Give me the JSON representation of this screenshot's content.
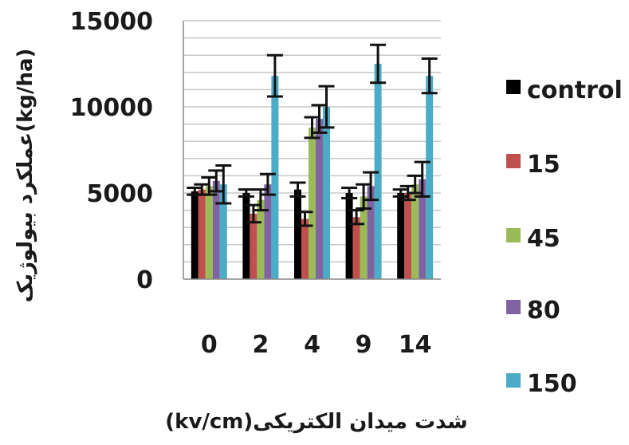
{
  "chart_data": {
    "type": "bar",
    "xlabel": "شدت میدان الکتریکی(kv/cm)",
    "ylabel": "عملکرد بیولوژیک(kg/ha)",
    "ylim": [
      0,
      15000
    ],
    "yticks": [
      0,
      5000,
      10000,
      15000
    ],
    "categories": [
      "0",
      "2",
      "4",
      "9",
      "14"
    ],
    "grid": true,
    "legend_position": "right",
    "series": [
      {
        "name": "control",
        "color": "#000000",
        "values": [
          5100,
          5000,
          5200,
          5000,
          5000
        ],
        "errors": [
          200,
          200,
          400,
          300,
          200
        ]
      },
      {
        "name": "15",
        "color": "#c0504d",
        "values": [
          5200,
          3800,
          3500,
          3600,
          5000
        ],
        "errors": [
          300,
          500,
          400,
          400,
          400
        ]
      },
      {
        "name": "45",
        "color": "#9bbb59",
        "values": [
          5400,
          4600,
          8800,
          4800,
          5500
        ],
        "errors": [
          500,
          600,
          600,
          700,
          500
        ]
      },
      {
        "name": "80",
        "color": "#8064a2",
        "values": [
          5700,
          5500,
          9300,
          5400,
          5800
        ],
        "errors": [
          600,
          600,
          800,
          800,
          1000
        ]
      },
      {
        "name": "150",
        "color": "#4bacc6",
        "values": [
          5500,
          11800,
          10000,
          12500,
          11800
        ],
        "errors": [
          1100,
          1200,
          1200,
          1100,
          1000
        ]
      }
    ]
  }
}
